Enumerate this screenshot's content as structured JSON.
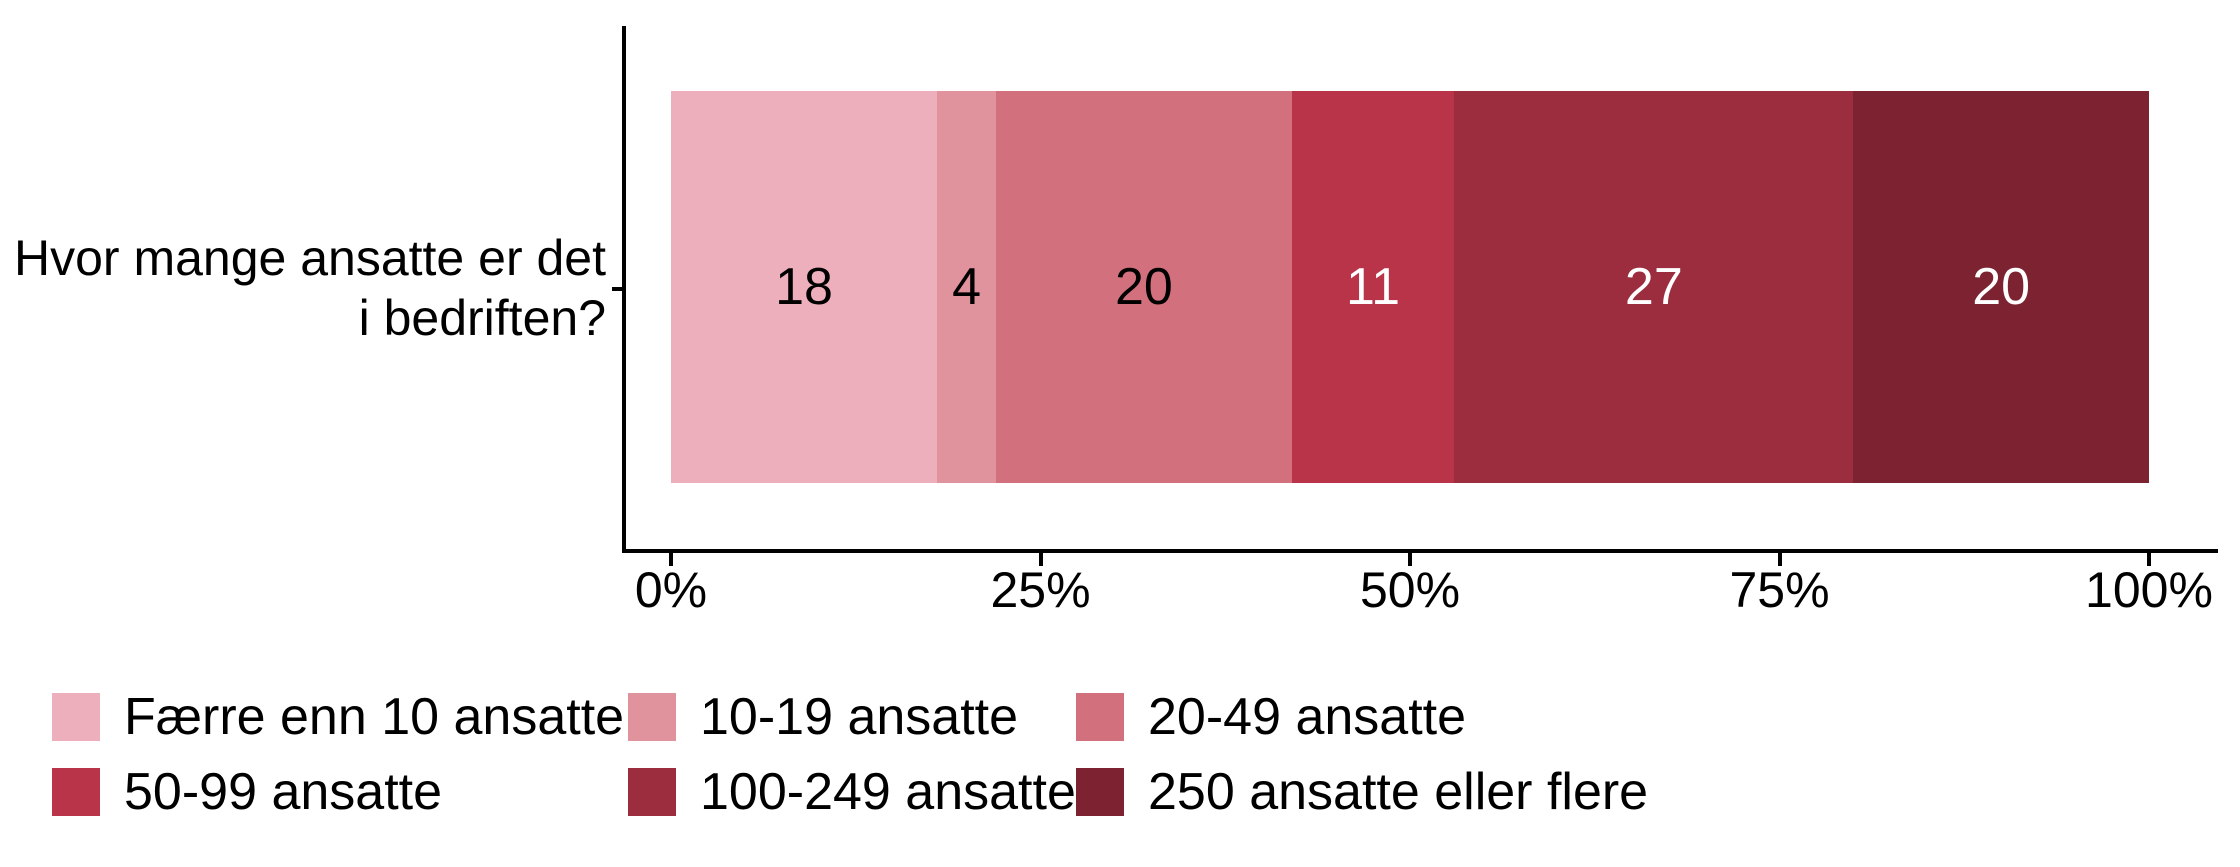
{
  "chart_data": {
    "type": "bar",
    "variant": "horizontal-stacked-percent",
    "title": "",
    "category_label": "Hvor mange ansatte er det i bedriften?",
    "category_lines": [
      "Hvor mange ansatte er det",
      "i bedriften?"
    ],
    "series": [
      {
        "name": "Færre enn 10 ansatte",
        "value": 18,
        "color": "#ECAFBB",
        "label_color": "#000000"
      },
      {
        "name": "10-19 ansatte",
        "value": 4,
        "color": "#E0929D",
        "label_color": "#000000"
      },
      {
        "name": "20-49 ansatte",
        "value": 20,
        "color": "#D3707E",
        "label_color": "#000000"
      },
      {
        "name": "50-99 ansatte",
        "value": 11,
        "color": "#B93448",
        "label_color": "#FFFFFF"
      },
      {
        "name": "100-249 ansatte",
        "value": 27,
        "color": "#9C2D3E",
        "label_color": "#FFFFFF"
      },
      {
        "name": "250 ansatte eller flere",
        "value": 20,
        "color": "#7C2230",
        "label_color": "#FFFFFF"
      }
    ],
    "x_ticks": [
      {
        "label": "0%",
        "position": 0
      },
      {
        "label": "25%",
        "position": 25
      },
      {
        "label": "50%",
        "position": 50
      },
      {
        "label": "75%",
        "position": 75
      },
      {
        "label": "100%",
        "position": 100
      }
    ],
    "xlim": [
      0,
      100
    ],
    "grid": false,
    "legend_position": "bottom",
    "axis_color": "#000000",
    "background_color": "#FFFFFF"
  }
}
